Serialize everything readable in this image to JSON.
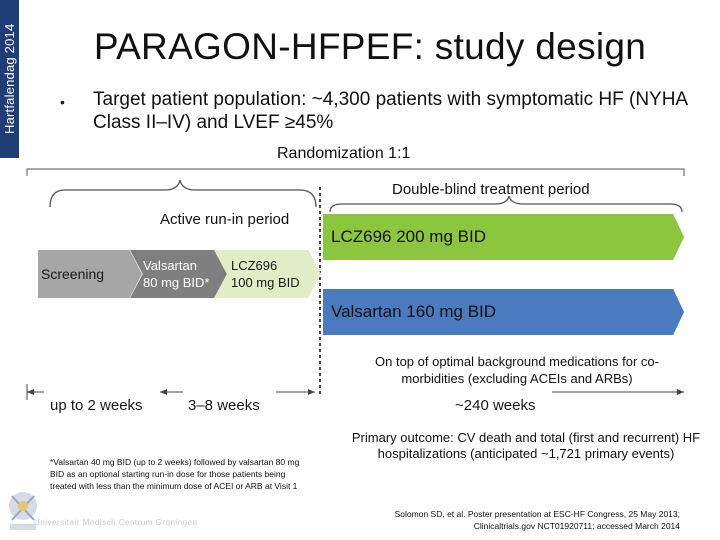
{
  "sidebar": {
    "label": "Hartfalendag 2014"
  },
  "slide": {
    "title": "PARAGON-HFPEF: study design",
    "bullet_marker": "•",
    "bullet_text": "Target patient population: ~4,300 patients with symptomatic HF (NYHA Class II–IV) and LVEF ≥45%",
    "randomization": "Randomization 1:1",
    "double_blind_label": "Double-blind treatment period",
    "run_in_label": "Active run-in period"
  },
  "arms": {
    "screening": "Screening",
    "valsartan_runin_line1": "Valsartan",
    "valsartan_runin_line2": "80 mg BID*",
    "lcz_runin_line1": "LCZ696",
    "lcz_runin_line2": "100 mg BID",
    "lcz_treatment": "LCZ696 200 mg BID",
    "valsartan_treatment": "Valsartan 160 mg BID"
  },
  "background_note": "On top of optimal background medications for co-morbidities (excluding ACEIs and ARBs)",
  "durations": {
    "screening": "up to 2 weeks",
    "run_in": "3–8 weeks",
    "treatment": "~240 weeks"
  },
  "primary_outcome": {
    "text": "Primary outcome: CV death and total (first and recurrent) HF hospitalizations (anticipated ~1,721 primary events)",
    "closing": ")"
  },
  "footnote": "*Valsartan 40 mg BID (up to 2 weeks) followed by valsartan 80 mg BID as an optional starting run-in dose for those patients being treated with less than the minimum dose of ACEI or ARB at Visit 1",
  "reference_line1": "Solomon SD, et al. Poster presentation at ESC-HF Congress, 25 May 2013;",
  "reference_line2": "Clinicaltrials.gov NCT01920711; accessed March 2014",
  "watermark": "Universitair Medisch Centrum Groningen",
  "colors": {
    "side_band": "#1f3e78",
    "screening": "#a6a6a6",
    "valsartan_runin": "#7f7f7f",
    "lcz_runin": "#e2ecc6",
    "lcz_treatment": "#8cc63f",
    "valsartan_treatment": "#4a7bbf"
  }
}
